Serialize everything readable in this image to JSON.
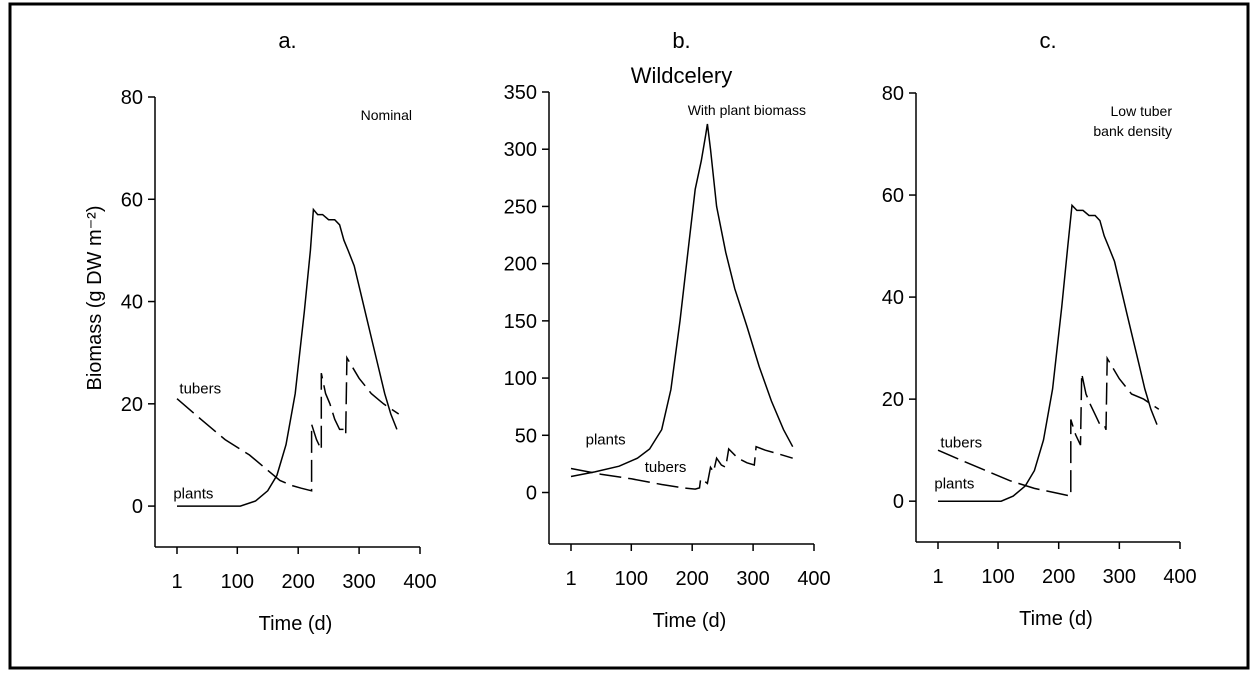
{
  "figure": {
    "ylabel": "Biomass (g DW m⁻²)"
  },
  "chart_data": [
    {
      "type": "line",
      "panel_label": "a.",
      "title": "",
      "annotation": "Nominal",
      "xlabel": "Time (d)",
      "ylabel": "Biomass (g DW m⁻²)",
      "xlim": [
        1,
        400
      ],
      "ylim": [
        -8,
        80
      ],
      "x_ticks": [
        "1",
        "100",
        "200",
        "300",
        "400"
      ],
      "y_ticks": [
        "0",
        "20",
        "40",
        "60",
        "80"
      ],
      "series": [
        {
          "name": "plants",
          "style": "solid",
          "points": [
            [
              1,
              0
            ],
            [
              105,
              0
            ],
            [
              130,
              1
            ],
            [
              150,
              3
            ],
            [
              165,
              6
            ],
            [
              180,
              12
            ],
            [
              195,
              22
            ],
            [
              210,
              38
            ],
            [
              220,
              50
            ],
            [
              225,
              58
            ],
            [
              232,
              57
            ],
            [
              240,
              57
            ],
            [
              250,
              56
            ],
            [
              260,
              56
            ],
            [
              268,
              55
            ],
            [
              275,
              52
            ],
            [
              282,
              50
            ],
            [
              292,
              47
            ],
            [
              302,
              42
            ],
            [
              312,
              37
            ],
            [
              322,
              32
            ],
            [
              332,
              27
            ],
            [
              342,
              22
            ],
            [
              352,
              18
            ],
            [
              362,
              15
            ]
          ]
        },
        {
          "name": "tubers",
          "style": "dashed",
          "points": [
            [
              1,
              21
            ],
            [
              40,
              17
            ],
            [
              80,
              13
            ],
            [
              120,
              10
            ],
            [
              150,
              7
            ],
            [
              170,
              5
            ],
            [
              190,
              4
            ],
            [
              205,
              3.5
            ],
            [
              222,
              3
            ],
            [
              222,
              16
            ],
            [
              230,
              13
            ],
            [
              238,
              11
            ],
            [
              238,
              26
            ],
            [
              245,
              22
            ],
            [
              252,
              20
            ],
            [
              260,
              17
            ],
            [
              268,
              15
            ],
            [
              275,
              15
            ],
            [
              278,
              14
            ],
            [
              280,
              29
            ],
            [
              300,
              25
            ],
            [
              320,
              22
            ],
            [
              340,
              20
            ],
            [
              365,
              18
            ]
          ]
        }
      ],
      "series_labels": [
        {
          "text": "tubers",
          "x": 5,
          "y": 22
        },
        {
          "text": "plants",
          "x": -5,
          "y": 1.5
        }
      ]
    },
    {
      "type": "line",
      "panel_label": "b.",
      "title": "Wildcelery",
      "annotation": "With plant biomass",
      "xlabel": "Time (d)",
      "ylabel": "",
      "xlim": [
        1,
        400
      ],
      "ylim": [
        -45,
        350
      ],
      "x_ticks": [
        "1",
        "100",
        "200",
        "300",
        "400"
      ],
      "y_ticks": [
        "0",
        "50",
        "100",
        "150",
        "200",
        "250",
        "300",
        "350"
      ],
      "series": [
        {
          "name": "plants",
          "style": "solid",
          "points": [
            [
              1,
              14
            ],
            [
              40,
              18
            ],
            [
              80,
              23
            ],
            [
              110,
              30
            ],
            [
              130,
              38
            ],
            [
              150,
              55
            ],
            [
              165,
              90
            ],
            [
              180,
              150
            ],
            [
              195,
              220
            ],
            [
              205,
              265
            ],
            [
              215,
              290
            ],
            [
              222,
              312
            ],
            [
              225,
              322
            ],
            [
              230,
              300
            ],
            [
              240,
              250
            ],
            [
              255,
              210
            ],
            [
              270,
              178
            ],
            [
              290,
              145
            ],
            [
              310,
              110
            ],
            [
              330,
              80
            ],
            [
              350,
              55
            ],
            [
              365,
              40
            ]
          ]
        },
        {
          "name": "tubers",
          "style": "dashed",
          "points": [
            [
              1,
              21
            ],
            [
              50,
              16
            ],
            [
              100,
              12
            ],
            [
              150,
              7
            ],
            [
              185,
              4
            ],
            [
              205,
              3
            ],
            [
              212,
              4
            ],
            [
              214,
              12
            ],
            [
              220,
              10
            ],
            [
              225,
              8
            ],
            [
              230,
              22
            ],
            [
              235,
              18
            ],
            [
              240,
              30
            ],
            [
              248,
              24
            ],
            [
              255,
              22
            ],
            [
              260,
              38
            ],
            [
              275,
              30
            ],
            [
              290,
              26
            ],
            [
              302,
              24
            ],
            [
              305,
              40
            ],
            [
              320,
              37
            ],
            [
              340,
              34
            ],
            [
              365,
              30
            ]
          ]
        }
      ],
      "series_labels": [
        {
          "text": "plants",
          "x": 25,
          "y": 42
        },
        {
          "text": "tubers",
          "x": 122,
          "y": 18
        }
      ]
    },
    {
      "type": "line",
      "panel_label": "c.",
      "title": "",
      "annotation": "Low tuber bank density",
      "annotation_lines": [
        "Low tuber",
        "bank density"
      ],
      "xlabel": "Time (d)",
      "ylabel": "",
      "xlim": [
        1,
        400
      ],
      "ylim": [
        -8,
        80
      ],
      "x_ticks": [
        "1",
        "100",
        "200",
        "300",
        "400"
      ],
      "y_ticks": [
        "0",
        "20",
        "40",
        "60",
        "80"
      ],
      "series": [
        {
          "name": "plants",
          "style": "solid",
          "points": [
            [
              1,
              0
            ],
            [
              105,
              0
            ],
            [
              125,
              1
            ],
            [
              145,
              3
            ],
            [
              160,
              6
            ],
            [
              175,
              12
            ],
            [
              190,
              22
            ],
            [
              205,
              38
            ],
            [
              215,
              50
            ],
            [
              222,
              58
            ],
            [
              230,
              57
            ],
            [
              240,
              57
            ],
            [
              250,
              56
            ],
            [
              260,
              56
            ],
            [
              268,
              55
            ],
            [
              275,
              52
            ],
            [
              282,
              50
            ],
            [
              292,
              47
            ],
            [
              302,
              42
            ],
            [
              312,
              37
            ],
            [
              322,
              32
            ],
            [
              332,
              27
            ],
            [
              342,
              22
            ],
            [
              352,
              18
            ],
            [
              362,
              15
            ]
          ]
        },
        {
          "name": "tubers",
          "style": "dashed",
          "points": [
            [
              1,
              10
            ],
            [
              40,
              8
            ],
            [
              80,
              6
            ],
            [
              120,
              4
            ],
            [
              160,
              2.5
            ],
            [
              200,
              1.5
            ],
            [
              220,
              1
            ],
            [
              220,
              16
            ],
            [
              228,
              13
            ],
            [
              236,
              11
            ],
            [
              238,
              25
            ],
            [
              245,
              21
            ],
            [
              252,
              19
            ],
            [
              260,
              17
            ],
            [
              268,
              15
            ],
            [
              275,
              15
            ],
            [
              278,
              14
            ],
            [
              280,
              28
            ],
            [
              300,
              24
            ],
            [
              320,
              21
            ],
            [
              340,
              20
            ],
            [
              365,
              18
            ]
          ]
        }
      ],
      "series_labels": [
        {
          "text": "tubers",
          "x": 5,
          "y": 10.5
        },
        {
          "text": "plants",
          "x": -5,
          "y": 2.5
        }
      ]
    }
  ]
}
